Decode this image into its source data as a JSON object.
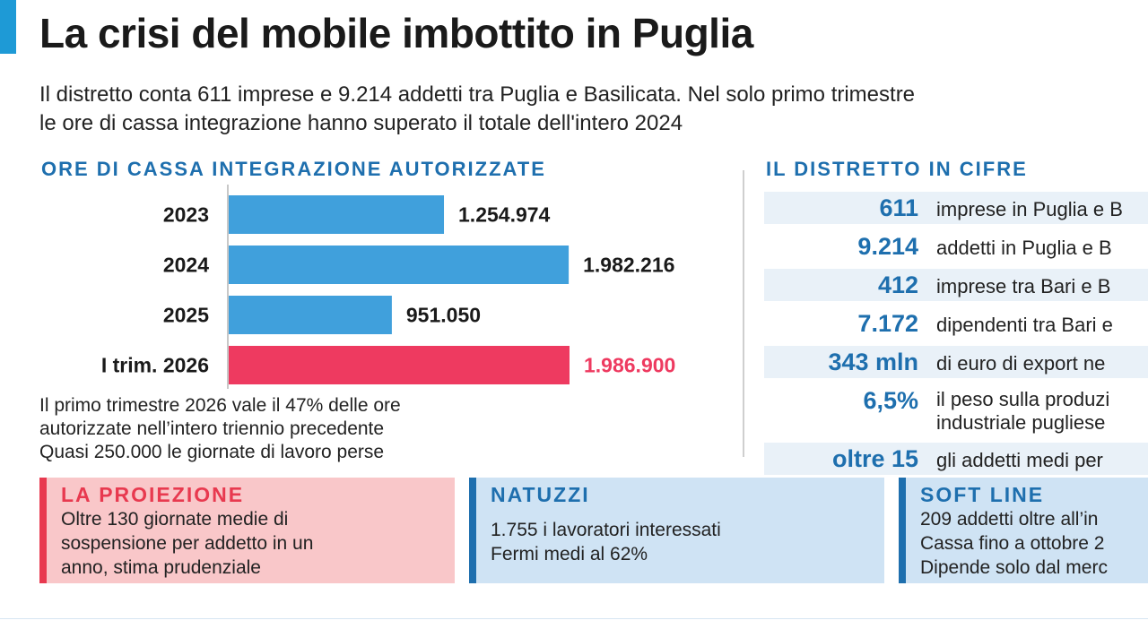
{
  "title": "La crisi del mobile imbottito in Puglia",
  "subtitle": [
    "Il distretto conta 611 imprese e 9.214 addetti tra Puglia e Basilicata. Nel solo primo trimestre",
    "le ore di cassa integrazione hanno superato il totale dell'intero 2024"
  ],
  "chart_data": {
    "type": "bar",
    "orientation": "horizontal",
    "title": "ORE DI CASSA INTEGRAZIONE AUTORIZZATE",
    "categories": [
      "2023",
      "2024",
      "2025",
      "I trim. 2026"
    ],
    "values": [
      1254974,
      1982216,
      951050,
      1986900
    ],
    "value_labels": [
      "1.254.974",
      "1.982.216",
      "951.050",
      "1.986.900"
    ],
    "colors": [
      "#40a0dc",
      "#40a0dc",
      "#40a0dc",
      "#ee3a60"
    ],
    "xlim": [
      0,
      1986900
    ],
    "grid": false,
    "legend": "none"
  },
  "chart_note": [
    "Il primo trimestre 2026 vale il 47% delle ore",
    "autorizzate nell’intero triennio precedente",
    "Quasi 250.000 le giornate di lavoro perse"
  ],
  "district": {
    "heading": "IL DISTRETTO IN CIFRE",
    "items": [
      {
        "value": "611",
        "label": [
          "imprese in Puglia e B"
        ]
      },
      {
        "value": "9.214",
        "label": [
          "addetti in Puglia e B"
        ]
      },
      {
        "value": "412",
        "label": [
          "imprese tra Bari e B"
        ]
      },
      {
        "value": "7.172",
        "label": [
          "dipendenti tra Bari e"
        ]
      },
      {
        "value": "343 mln",
        "label": [
          "di euro di export ne"
        ]
      },
      {
        "value": "6,5%",
        "label": [
          "il peso sulla produzi",
          "industriale pugliese"
        ]
      },
      {
        "value": "oltre 15",
        "label": [
          "gli addetti medi per"
        ]
      }
    ]
  },
  "boxes": {
    "proiezione": {
      "heading": "LA PROIEZIONE",
      "lines": [
        "Oltre 130 giornate medie di",
        "sospensione per addetto in un",
        "anno, stima prudenziale"
      ]
    },
    "natuzzi": {
      "heading": "NATUZZI",
      "lines": [
        "1.755 i lavoratori interessati",
        "Fermi medi al 62%"
      ]
    },
    "softline": {
      "heading": "SOFT LINE",
      "lines": [
        "209 addetti oltre all’in",
        "Cassa fino a ottobre 2",
        "Dipende solo dal merc"
      ]
    }
  }
}
